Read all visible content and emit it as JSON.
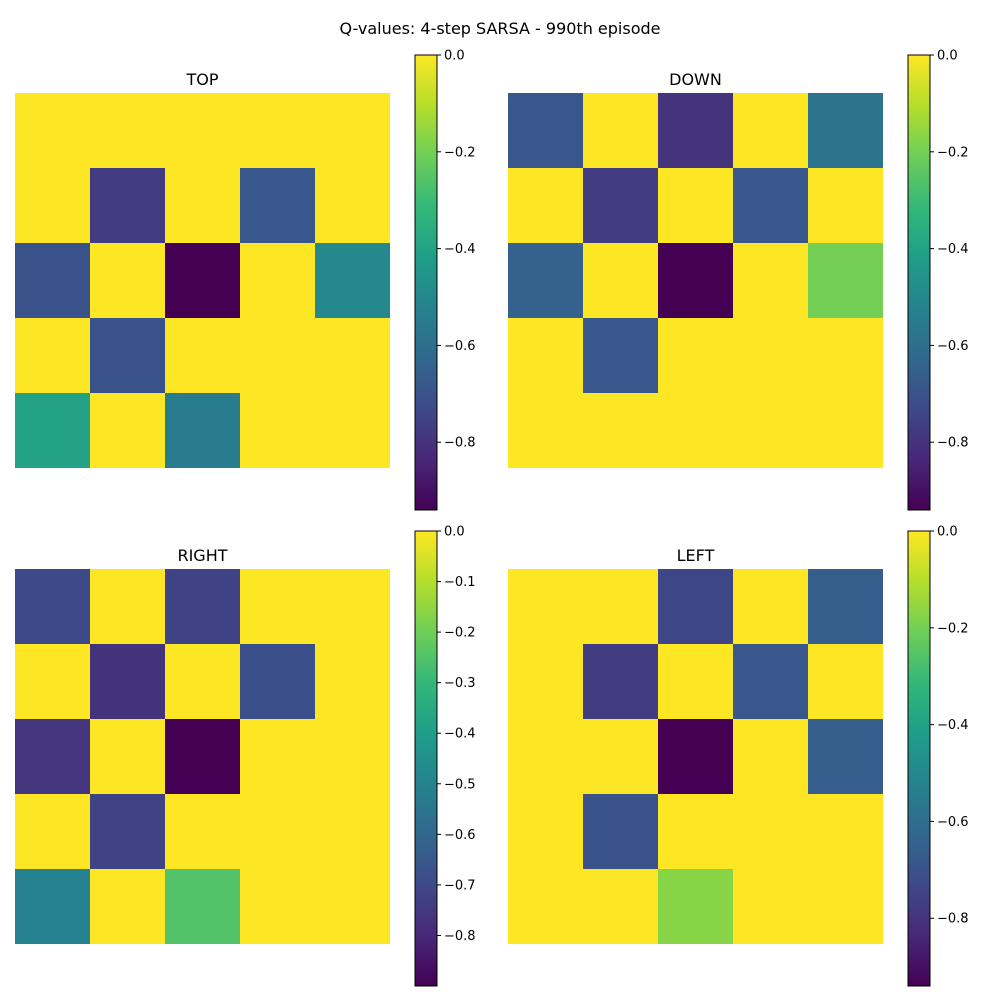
{
  "figure": {
    "title": "Q-values: 4-step SARSA - 990th episode"
  },
  "colormap": [
    "#440154",
    "#482878",
    "#3e4989",
    "#31688e",
    "#26828e",
    "#1f9e89",
    "#35b779",
    "#6ece58",
    "#b5de2b",
    "#fde725"
  ],
  "chart_data": [
    {
      "type": "heatmap",
      "title": "TOP",
      "vmin": -0.94,
      "vmax": 0.0,
      "colorbar_ticks": [
        0.0,
        -0.2,
        -0.4,
        -0.6,
        -0.8
      ],
      "colorbar_tick_labels": [
        "0.0",
        "−0.2",
        "−0.4",
        "−0.6",
        "−0.8"
      ],
      "values": [
        [
          0,
          0,
          0,
          0,
          0
        ],
        [
          0,
          -0.77,
          0,
          -0.68,
          0
        ],
        [
          -0.7,
          0,
          -0.94,
          0,
          -0.5
        ],
        [
          0,
          -0.7,
          0,
          0,
          0
        ],
        [
          -0.4,
          0,
          -0.55,
          0,
          0
        ]
      ]
    },
    {
      "type": "heatmap",
      "title": "DOWN",
      "vmin": -0.94,
      "vmax": 0.0,
      "colorbar_ticks": [
        0.0,
        -0.2,
        -0.4,
        -0.6,
        -0.8
      ],
      "colorbar_tick_labels": [
        "0.0",
        "−0.2",
        "−0.4",
        "−0.6",
        "−0.8"
      ],
      "values": [
        [
          -0.68,
          0,
          -0.8,
          0,
          -0.58
        ],
        [
          0,
          -0.77,
          0,
          -0.68,
          0
        ],
        [
          -0.65,
          0,
          -0.94,
          0,
          -0.2
        ],
        [
          0,
          -0.68,
          0,
          0,
          0
        ],
        [
          0,
          0,
          0,
          0,
          0
        ]
      ]
    },
    {
      "type": "heatmap",
      "title": "RIGHT",
      "vmin": -0.9,
      "vmax": 0.0,
      "colorbar_ticks": [
        0.0,
        -0.1,
        -0.2,
        -0.3,
        -0.4,
        -0.5,
        -0.6,
        -0.7,
        -0.8
      ],
      "colorbar_tick_labels": [
        "0.0",
        "−0.1",
        "−0.2",
        "−0.3",
        "−0.4",
        "−0.5",
        "−0.6",
        "−0.7",
        "−0.8"
      ],
      "values": [
        [
          -0.7,
          0,
          -0.72,
          0,
          0
        ],
        [
          0,
          -0.77,
          0,
          -0.68,
          0
        ],
        [
          -0.76,
          0,
          -0.9,
          0,
          0
        ],
        [
          0,
          -0.72,
          0,
          0,
          0
        ],
        [
          -0.5,
          0,
          -0.25,
          0,
          0
        ]
      ]
    },
    {
      "type": "heatmap",
      "title": "LEFT",
      "vmin": -0.94,
      "vmax": 0.0,
      "colorbar_ticks": [
        0.0,
        -0.2,
        -0.4,
        -0.6,
        -0.8
      ],
      "colorbar_tick_labels": [
        "0.0",
        "−0.2",
        "−0.4",
        "−0.6",
        "−0.8"
      ],
      "values": [
        [
          0,
          0,
          -0.74,
          0,
          -0.66
        ],
        [
          0,
          -0.77,
          0,
          -0.68,
          0
        ],
        [
          0,
          0,
          -0.94,
          0,
          -0.66
        ],
        [
          0,
          -0.7,
          0,
          0,
          0
        ],
        [
          0,
          0,
          -0.17,
          0,
          0
        ]
      ]
    }
  ]
}
